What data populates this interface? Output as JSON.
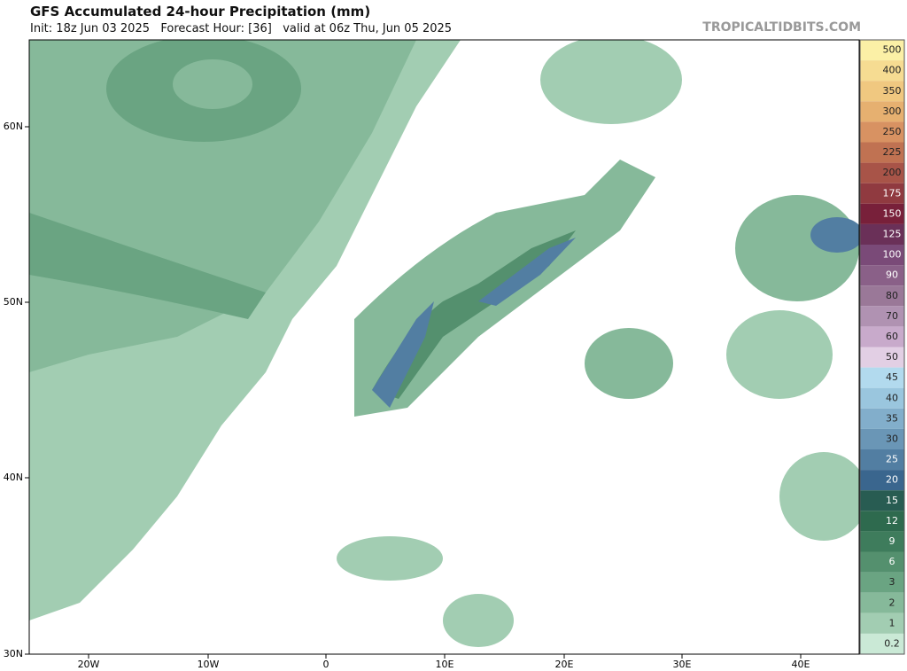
{
  "header": {
    "title": "GFS Accumulated 24-hour Precipitation (mm)",
    "subtitle": "Init: 18z Jun 03 2025   Forecast Hour: [36]   valid at 06z Thu, Jun 05 2025",
    "source": "TROPICALTIDBITS.COM"
  },
  "map": {
    "lat_labels": [
      "60N",
      "50N",
      "40N",
      "30N"
    ],
    "lon_labels": [
      "20W",
      "10W",
      "0",
      "10E",
      "20E",
      "30E",
      "40E"
    ]
  },
  "colorbar": {
    "levels": [
      500,
      400,
      350,
      300,
      250,
      225,
      200,
      175,
      150,
      125,
      100,
      90,
      80,
      70,
      60,
      50,
      45,
      40,
      35,
      30,
      25,
      20,
      15,
      12,
      9,
      6,
      3,
      2,
      1,
      0.2
    ],
    "colors": [
      "#fbf0a6",
      "#f6dc92",
      "#f0c880",
      "#e6b070",
      "#d89262",
      "#c07252",
      "#a85448",
      "#903a40",
      "#78203a",
      "#6a3058",
      "#7a4a78",
      "#8a6088",
      "#9a7898",
      "#b092b2",
      "#c8aacb",
      "#e2cfe4",
      "#b2daee",
      "#9ac6de",
      "#82aecb",
      "#6a96b6",
      "#527ea2",
      "#3a668e",
      "#285c52",
      "#2e6a4e",
      "#3e7c5c",
      "#54906e",
      "#6aa482",
      "#86b99a",
      "#a2cdb2",
      "#cae9d6"
    ]
  }
}
